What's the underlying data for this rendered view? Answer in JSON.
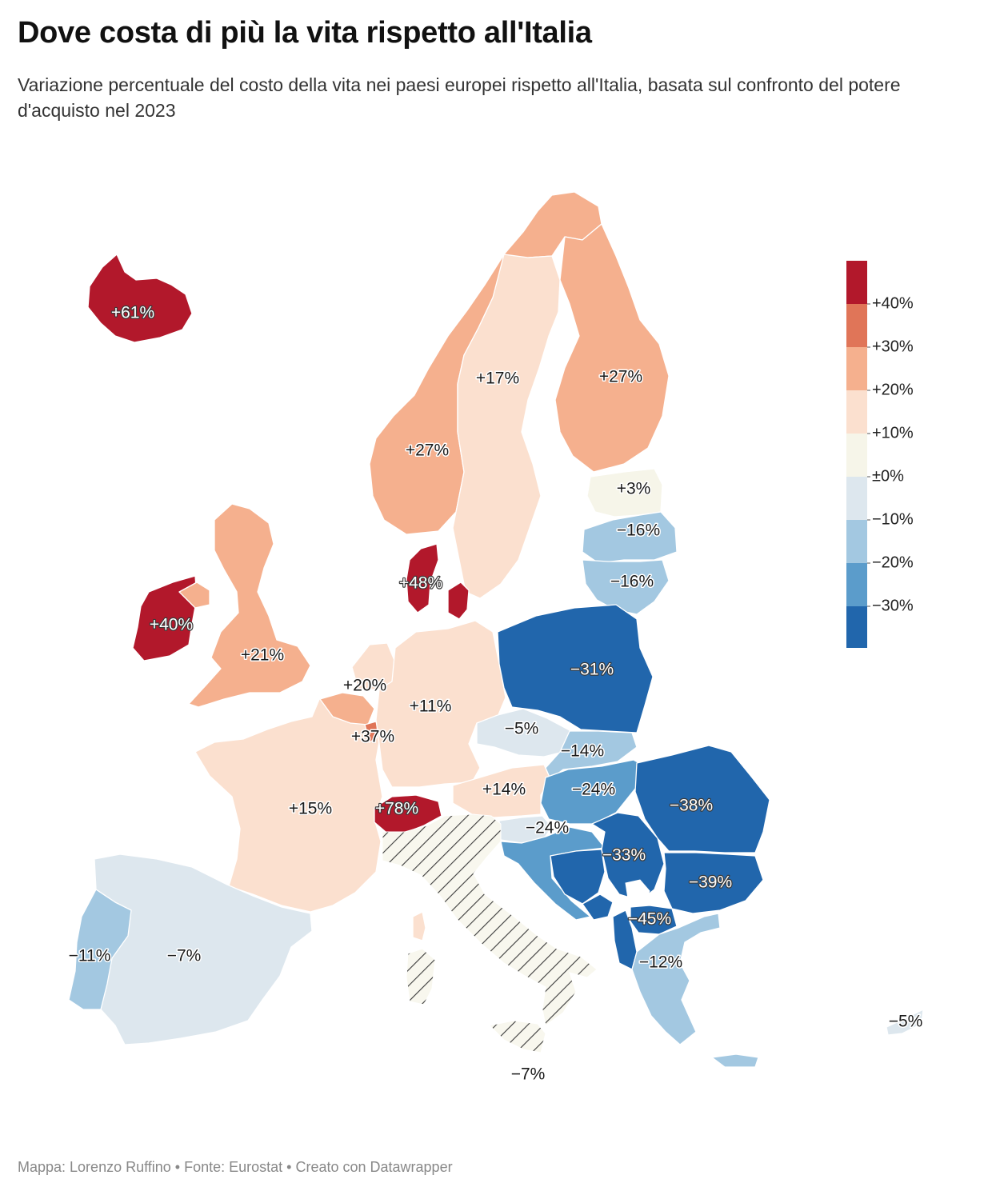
{
  "header": {
    "title": "Dove costa di più la vita rispetto all'Italia",
    "subtitle": "Variazione percentuale del costo della vita nei paesi europei rispetto all'Italia, basata sul confronto del potere d'acquisto nel 2023"
  },
  "footer": {
    "credit": "Mappa: Lorenzo Ruffino • Fonte: Eurostat • Creato con Datawrapper"
  },
  "colors": {
    "bin_above_40": "#b2182b",
    "bin_30_40": "#e07558",
    "bin_20_30": "#f5b08e",
    "bin_10_20": "#fbe0cf",
    "bin_0_10": "#f6f5e9",
    "bin_minus10_0": "#dde7ee",
    "bin_minus20_minus10": "#a3c8e1",
    "bin_minus30_minus20": "#5b9ccb",
    "bin_below_minus30": "#2166ac",
    "reference_hatch": "#3b3b3b"
  },
  "legend": {
    "ticks": [
      "+40%",
      "+30%",
      "+20%",
      "+10%",
      "±0%",
      "−10%",
      "−20%",
      "−30%"
    ]
  },
  "map": {
    "reference_country": "hatched",
    "labels": {
      "iceland": "+61%",
      "norway": "+27%",
      "sweden": "+17%",
      "finland": "+27%",
      "estonia": "+3%",
      "latvia": "−16%",
      "lithuania": "−16%",
      "denmark": "+48%",
      "ireland": "+40%",
      "uk": "+21%",
      "netherlands": "+20%",
      "belgium_lux": "+37%",
      "germany": "+11%",
      "poland": "−31%",
      "czechia": "−5%",
      "slovakia": "−14%",
      "austria": "+14%",
      "hungary": "−24%",
      "slovenia": "−24%",
      "romania": "−38%",
      "serbia": "−33%",
      "bulgaria": "−39%",
      "north_macedonia": "−45%",
      "greece": "−12%",
      "cyprus": "−5%",
      "malta": "−7%",
      "switzerland": "+78%",
      "france": "+15%",
      "spain": "−7%",
      "portugal": "−11%"
    }
  }
}
